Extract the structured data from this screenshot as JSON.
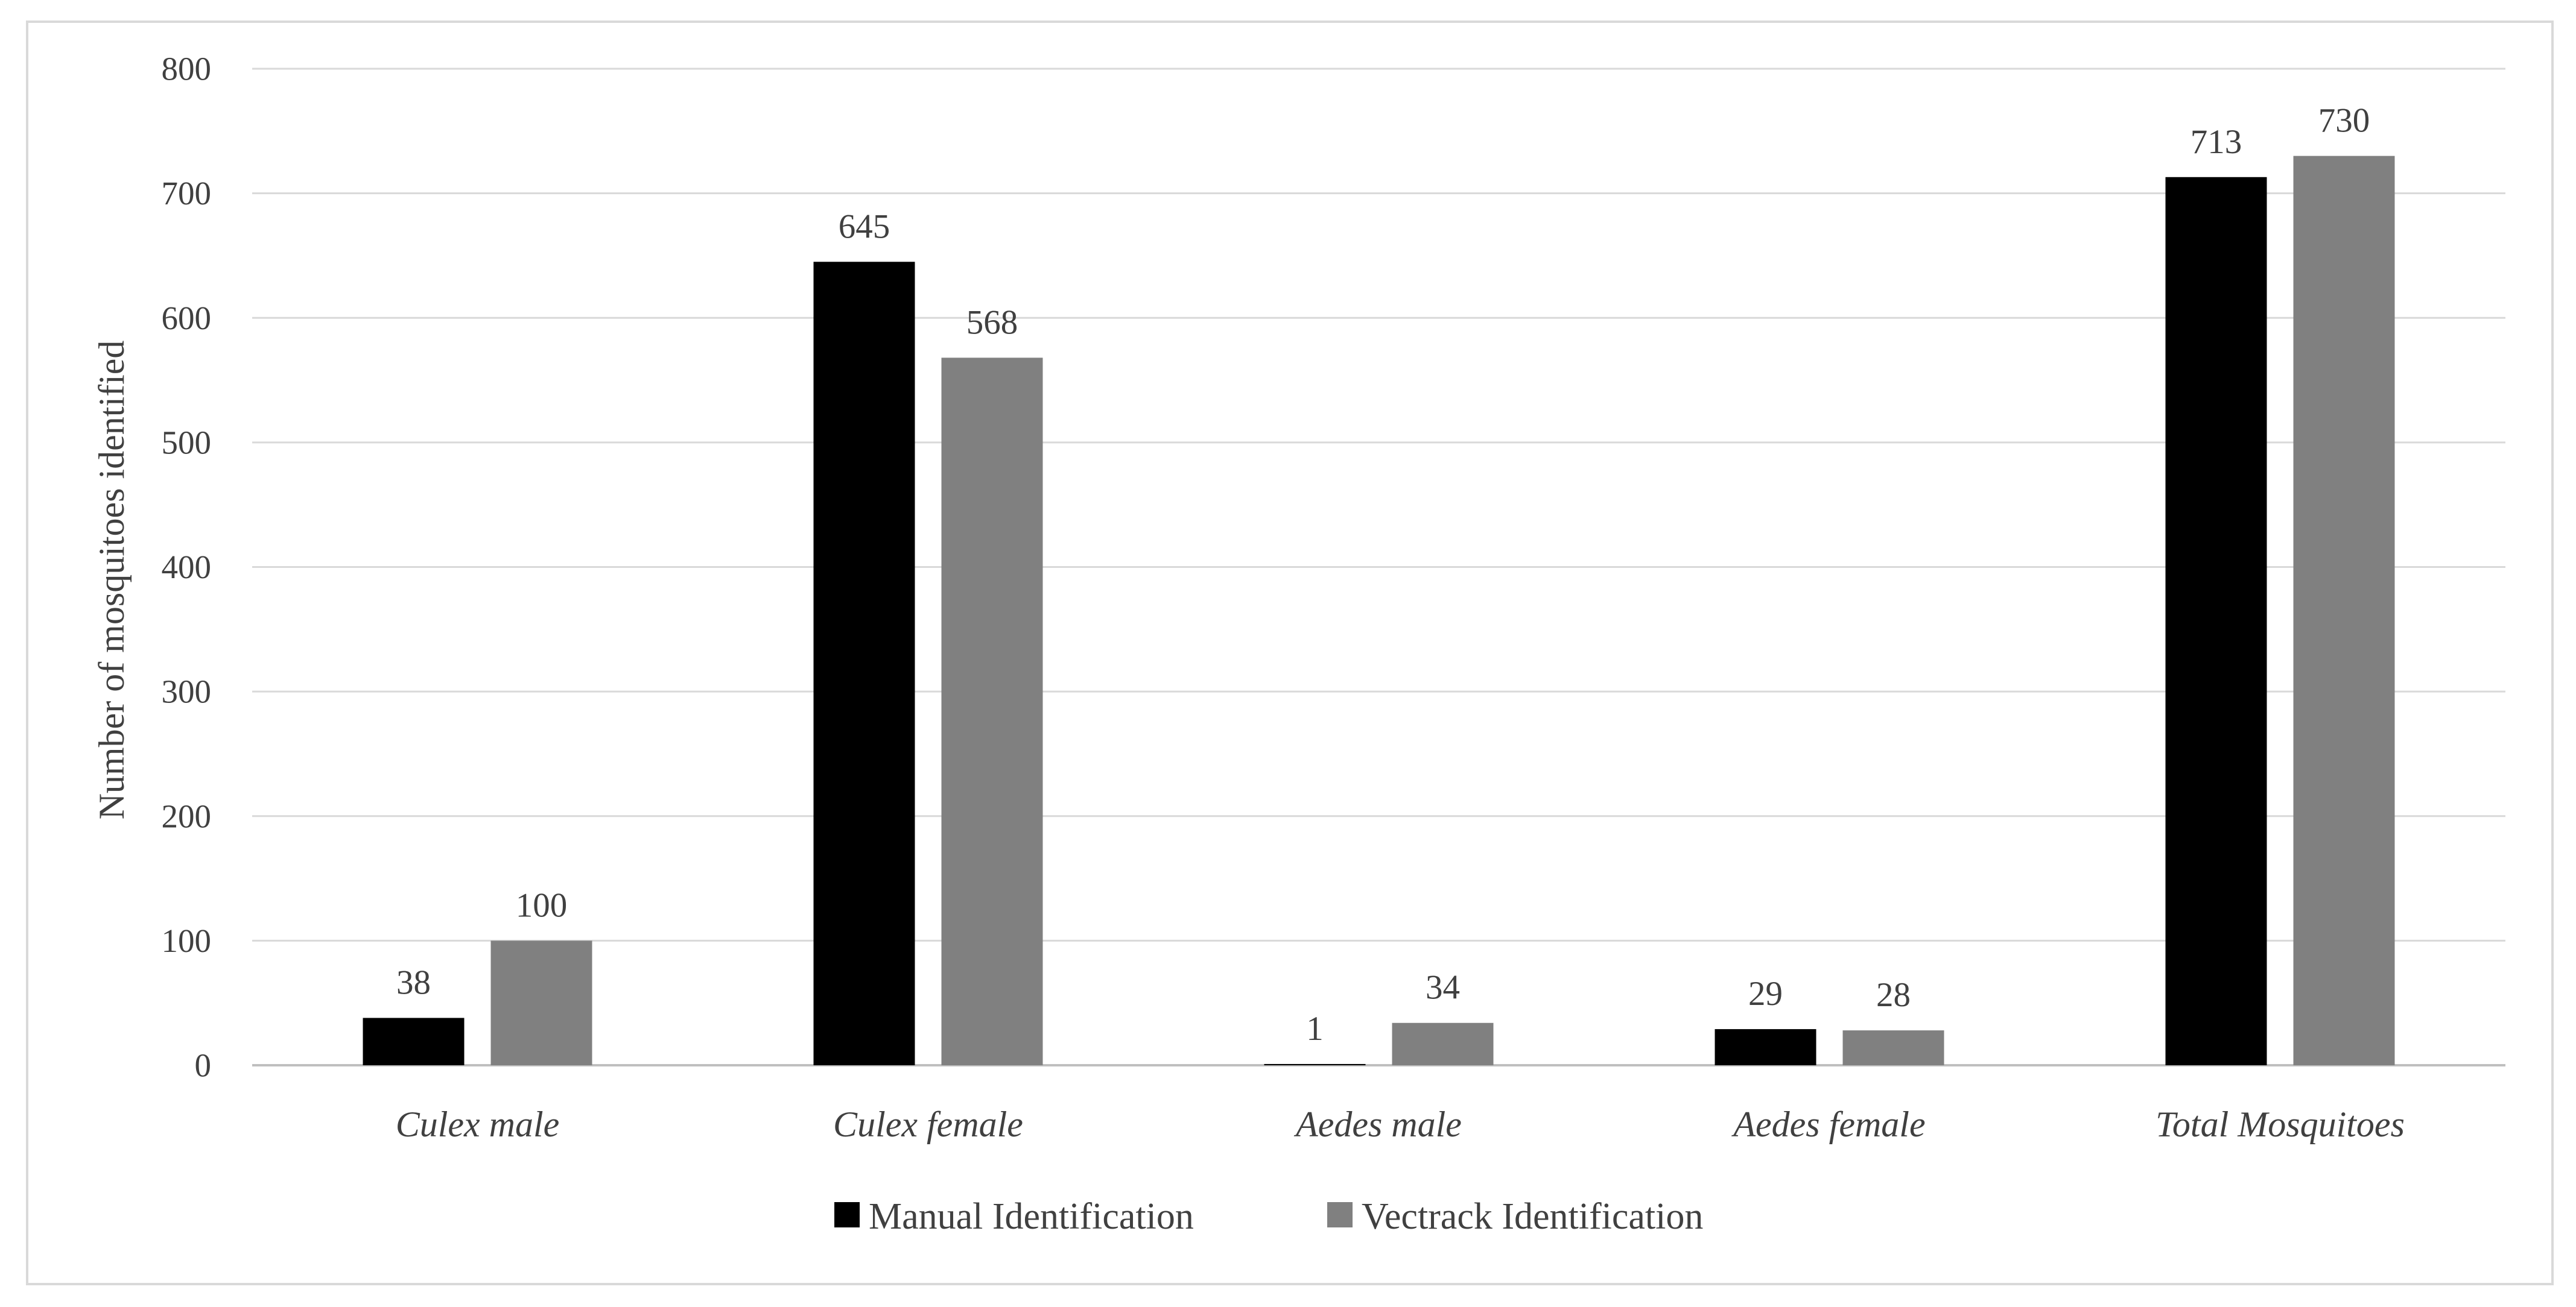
{
  "chart_data": {
    "type": "bar",
    "title": "",
    "xlabel": "",
    "ylabel": "Number of mosquitoes identified",
    "ylim": [
      0,
      800
    ],
    "yticks": [
      0,
      100,
      200,
      300,
      400,
      500,
      600,
      700,
      800
    ],
    "grid": true,
    "legend_position": "bottom",
    "categories": [
      "Culex male",
      "Culex female",
      "Aedes male",
      "Aedes female",
      "Total Mosquitoes"
    ],
    "series": [
      {
        "name": "Manual Identification",
        "color": "#000000",
        "values": [
          38,
          645,
          1,
          29,
          713
        ]
      },
      {
        "name": "Vectrack Identification",
        "color": "#808080",
        "values": [
          100,
          568,
          34,
          28,
          730
        ]
      }
    ]
  }
}
